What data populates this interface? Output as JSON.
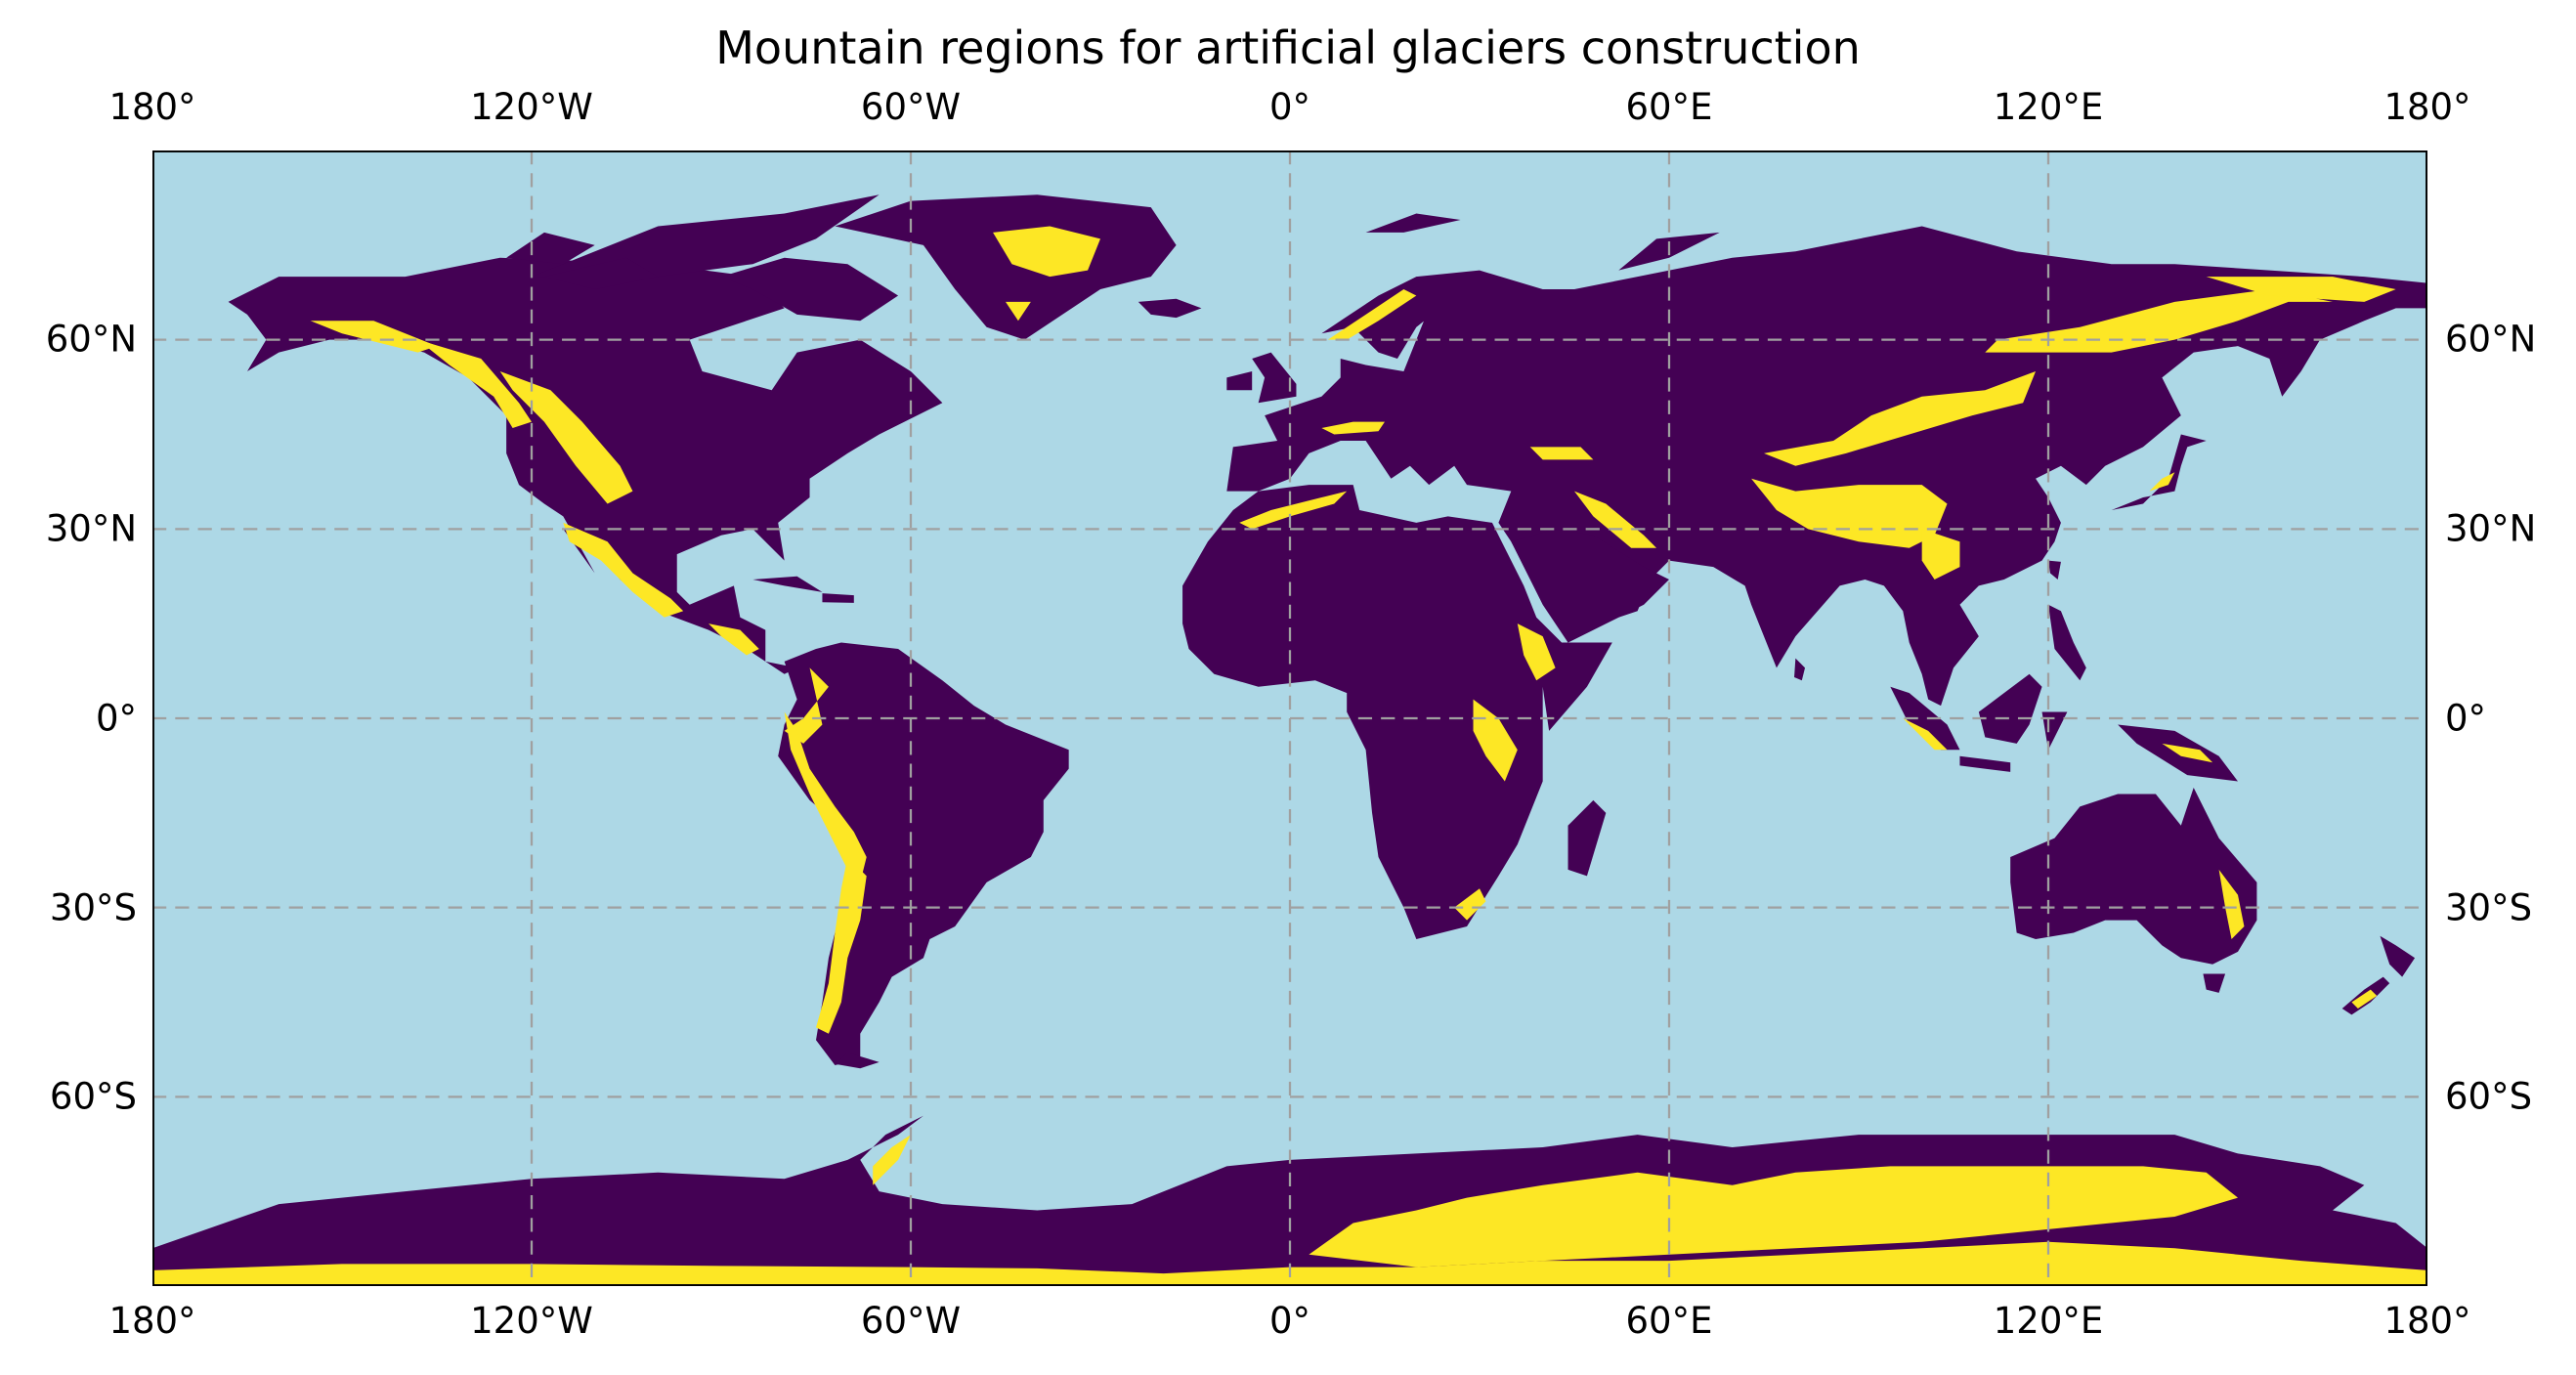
{
  "map": {
    "title": "Mountain regions for artificial glaciers construction",
    "projection": "PlateCarree",
    "extent": {
      "lon": [
        -180,
        180
      ],
      "lat": [
        -90,
        90
      ]
    },
    "gridlines": true,
    "lon_ticks": [
      {
        "value": -180,
        "label": "180°"
      },
      {
        "value": -120,
        "label": "120°W"
      },
      {
        "value": -60,
        "label": "60°W"
      },
      {
        "value": 0,
        "label": "0°"
      },
      {
        "value": 60,
        "label": "60°E"
      },
      {
        "value": 120,
        "label": "120°E"
      },
      {
        "value": 180,
        "label": "180°"
      }
    ],
    "lat_ticks": [
      {
        "value": 60,
        "label": "60°N"
      },
      {
        "value": 30,
        "label": "30°N"
      },
      {
        "value": 0,
        "label": "0°"
      },
      {
        "value": -30,
        "label": "30°S"
      },
      {
        "value": -60,
        "label": "60°S"
      }
    ],
    "colors": {
      "ocean": "#add8e6",
      "land": "#440154",
      "mountain": "#fde725",
      "transition": "#21918c",
      "grid": "#a0a0a0"
    }
  }
}
